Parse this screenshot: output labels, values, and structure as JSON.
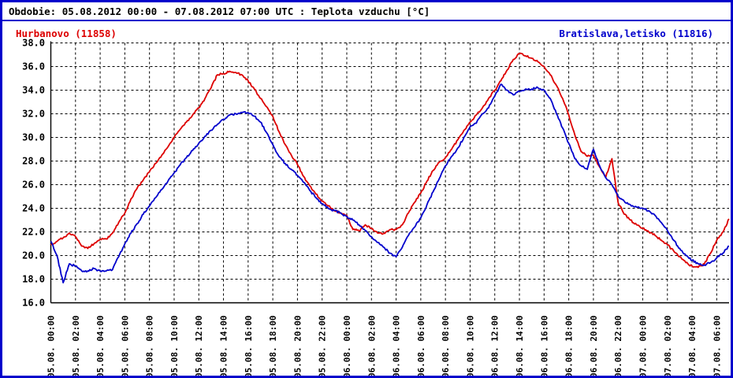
{
  "window": {
    "border_color": "#0000cc",
    "background": "#ffffff"
  },
  "header": {
    "title": "Obdobie: 05.08.2012 00:00 - 07.08.2012 07:00 UTC : Teplota vzduchu [°C]"
  },
  "legend": {
    "left": {
      "label": "Hurbanovo (11858)",
      "color": "#dd0000"
    },
    "right": {
      "label": "Bratislava,letisko (11816)",
      "color": "#0000cc"
    }
  },
  "chart_data": {
    "type": "line",
    "title": "Teplota vzduchu [°C]",
    "period": "05.08.2012 00:00 - 07.08.2012 07:00 UTC",
    "xlabel": "",
    "ylabel": "",
    "ylim": [
      16,
      38
    ],
    "x_range_hours": [
      0,
      55
    ],
    "x_step_hours": 0.5,
    "grid": "dashed, 2 °C horizontal / 2 h vertical",
    "legend_position": "top",
    "y_ticks": [
      38,
      36,
      34,
      32,
      30,
      28,
      26,
      24,
      22,
      20,
      18,
      16
    ],
    "y_tick_labels": [
      "38.0",
      "36.0",
      "34.0",
      "32.0",
      "30.0",
      "28.0",
      "26.0",
      "24.0",
      "22.0",
      "20.0",
      "18.0",
      "16.0"
    ],
    "x_tick_hours": [
      0,
      2,
      4,
      6,
      8,
      10,
      12,
      14,
      16,
      18,
      20,
      22,
      24,
      26,
      28,
      30,
      32,
      34,
      36,
      38,
      40,
      42,
      44,
      46,
      48,
      50,
      52,
      54
    ],
    "x_tick_labels": [
      "05.08. 00:00",
      "05.08. 02:00",
      "05.08. 04:00",
      "05.08. 06:00",
      "05.08. 08:00",
      "05.08. 10:00",
      "05.08. 12:00",
      "05.08. 14:00",
      "05.08. 16:00",
      "05.08. 18:00",
      "05.08. 20:00",
      "05.08. 22:00",
      "06.08. 00:00",
      "06.08. 02:00",
      "06.08. 04:00",
      "06.08. 06:00",
      "06.08. 08:00",
      "06.08. 10:00",
      "06.08. 12:00",
      "06.08. 14:00",
      "06.08. 16:00",
      "06.08. 18:00",
      "06.08. 20:00",
      "06.08. 22:00",
      "07.08. 00:00",
      "07.08. 02:00",
      "07.08. 04:00",
      "07.08. 06:00"
    ],
    "series": [
      {
        "name": "Hurbanovo (11858)",
        "color": "#dd0000",
        "values": [
          20.9,
          21.2,
          21.5,
          21.9,
          21.6,
          20.8,
          20.6,
          21.0,
          21.4,
          21.4,
          21.9,
          22.8,
          23.6,
          24.8,
          25.7,
          26.4,
          27.1,
          27.8,
          28.5,
          29.2,
          30.0,
          30.7,
          31.3,
          31.9,
          32.5,
          33.3,
          34.2,
          35.3,
          35.4,
          35.6,
          35.5,
          35.3,
          34.8,
          34.1,
          33.3,
          32.6,
          31.8,
          30.5,
          29.4,
          28.5,
          27.7,
          26.7,
          25.9,
          25.2,
          24.6,
          24.2,
          23.8,
          23.6,
          23.4,
          22.2,
          22.1,
          22.6,
          22.3,
          21.9,
          21.9,
          22.2,
          22.2,
          22.6,
          23.6,
          24.5,
          25.3,
          26.3,
          27.2,
          27.9,
          28.3,
          29.0,
          29.8,
          30.6,
          31.3,
          31.9,
          32.5,
          33.3,
          34.0,
          34.8,
          35.7,
          36.6,
          37.1,
          36.9,
          36.7,
          36.4,
          36.0,
          35.3,
          34.4,
          33.3,
          31.9,
          30.2,
          28.8,
          28.4,
          28.5,
          27.5,
          26.6,
          28.2,
          24.5,
          23.5,
          23.0,
          22.6,
          22.3,
          22.0,
          21.7,
          21.3,
          20.9,
          20.4,
          19.9,
          19.4,
          19.1,
          19.0,
          19.3,
          20.2,
          21.3,
          22.0,
          23.1
        ]
      },
      {
        "name": "Bratislava,letisko (11816)",
        "color": "#0000cc",
        "values": [
          21.2,
          20.0,
          17.7,
          19.3,
          19.1,
          18.7,
          18.7,
          18.9,
          18.7,
          18.7,
          18.8,
          19.9,
          21.0,
          21.9,
          22.7,
          23.5,
          24.2,
          24.9,
          25.6,
          26.3,
          27.0,
          27.7,
          28.3,
          28.9,
          29.5,
          30.1,
          30.6,
          31.1,
          31.5,
          31.9,
          32.0,
          32.1,
          32.1,
          31.8,
          31.3,
          30.4,
          29.4,
          28.4,
          27.8,
          27.3,
          26.8,
          26.2,
          25.5,
          24.9,
          24.4,
          24.0,
          23.8,
          23.6,
          23.3,
          23.0,
          22.6,
          22.1,
          21.6,
          21.1,
          20.7,
          20.2,
          19.9,
          20.7,
          21.7,
          22.4,
          23.2,
          24.3,
          25.4,
          26.5,
          27.6,
          28.4,
          29.1,
          30.0,
          30.9,
          31.2,
          32.0,
          32.5,
          33.5,
          34.5,
          34.0,
          33.6,
          33.9,
          34.1,
          34.1,
          34.2,
          34.0,
          33.3,
          32.0,
          30.8,
          29.5,
          28.2,
          27.6,
          27.3,
          29.0,
          27.6,
          26.6,
          26.0,
          25.0,
          24.6,
          24.3,
          24.1,
          24.0,
          23.8,
          23.4,
          22.8,
          22.1,
          21.3,
          20.6,
          20.0,
          19.6,
          19.3,
          19.2,
          19.4,
          19.8,
          20.2,
          20.8
        ]
      }
    ]
  }
}
